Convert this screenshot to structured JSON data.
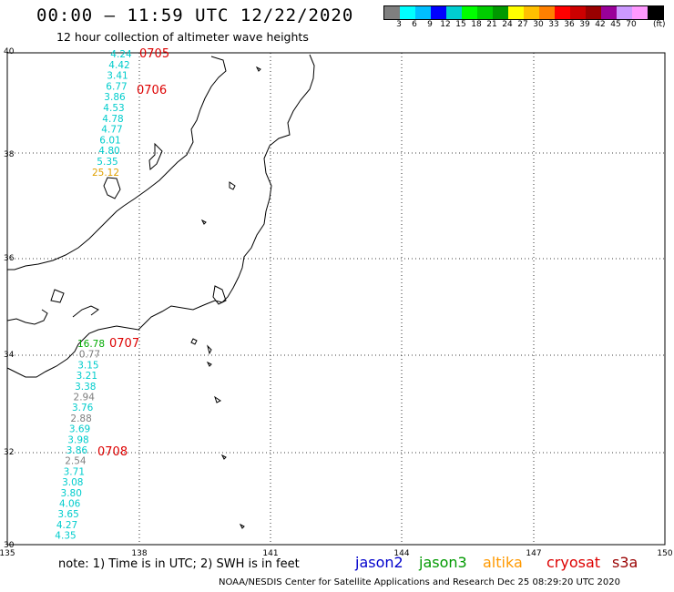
{
  "header": {
    "title": "00:00 – 11:59 UTC 12/22/2020",
    "subtitle": "12 hour collection of altimeter wave heights"
  },
  "colorbar": {
    "colors": [
      "#7f7f7f",
      "#00ffff",
      "#00bfff",
      "#0000ff",
      "#00ced1",
      "#00ff00",
      "#00cc00",
      "#009900",
      "#ffff00",
      "#ffc000",
      "#ff8000",
      "#ff0000",
      "#cc0000",
      "#990000",
      "#990099",
      "#cc99ff",
      "#ff99ff",
      "#000000"
    ],
    "labels": [
      "3",
      "6",
      "9",
      "12",
      "15",
      "18",
      "21",
      "24",
      "27",
      "30",
      "33",
      "36",
      "39",
      "42",
      "45",
      "70"
    ],
    "unit": "(ft)"
  },
  "axes": {
    "lon_labels": [
      "135",
      "138",
      "141",
      "144",
      "147",
      "150"
    ],
    "lat_labels": [
      "40",
      "38",
      "36",
      "34",
      "32",
      "30"
    ]
  },
  "track_north": {
    "values": [
      {
        "v": "4.24",
        "c": "#00cccc"
      },
      {
        "v": "4.42",
        "c": "#00cccc"
      },
      {
        "v": "3.41",
        "c": "#00cccc"
      },
      {
        "v": "6.77",
        "c": "#00cccc"
      },
      {
        "v": "3.86",
        "c": "#00cccc"
      },
      {
        "v": "4.53",
        "c": "#00cccc"
      },
      {
        "v": "4.78",
        "c": "#00cccc"
      },
      {
        "v": "4.77",
        "c": "#00cccc"
      },
      {
        "v": "6.01",
        "c": "#00cccc"
      },
      {
        "v": "4.80",
        "c": "#00cccc"
      },
      {
        "v": "5.35",
        "c": "#00cccc"
      },
      {
        "v": "25.12",
        "c": "#e0a000"
      }
    ],
    "time_labels": [
      "0705",
      "0706"
    ]
  },
  "track_south": {
    "values": [
      {
        "v": "16.78",
        "c": "#00aa00"
      },
      {
        "v": "0.77",
        "c": "#7f7f7f"
      },
      {
        "v": "3.15",
        "c": "#00cccc"
      },
      {
        "v": "3.21",
        "c": "#00cccc"
      },
      {
        "v": "3.38",
        "c": "#00cccc"
      },
      {
        "v": "2.94",
        "c": "#7f7f7f"
      },
      {
        "v": "3.76",
        "c": "#00cccc"
      },
      {
        "v": "2.88",
        "c": "#7f7f7f"
      },
      {
        "v": "3.69",
        "c": "#00cccc"
      },
      {
        "v": "3.98",
        "c": "#00cccc"
      },
      {
        "v": "3.86",
        "c": "#00cccc"
      },
      {
        "v": "2.54",
        "c": "#7f7f7f"
      },
      {
        "v": "3.71",
        "c": "#00cccc"
      },
      {
        "v": "3.08",
        "c": "#00cccc"
      },
      {
        "v": "3.80",
        "c": "#00cccc"
      },
      {
        "v": "4.06",
        "c": "#00cccc"
      },
      {
        "v": "3.65",
        "c": "#00cccc"
      },
      {
        "v": "4.27",
        "c": "#00cccc"
      },
      {
        "v": "4.35",
        "c": "#00cccc"
      }
    ],
    "time_labels": [
      "0707",
      "0708"
    ]
  },
  "footer": {
    "note": "note: 1) Time is in UTC; 2) SWH is in feet",
    "credit": "NOAA/NESDIS Center for Satellite Applications and Research    Dec 25 08:29:20 UTC 2020",
    "satellites": [
      {
        "name": "jason2",
        "color": "#0000cc"
      },
      {
        "name": "jason3",
        "color": "#009900"
      },
      {
        "name": "altika",
        "color": "#ff9900"
      },
      {
        "name": "cryosat",
        "color": "#dd0000"
      },
      {
        "name": "s3a",
        "color": "#990000"
      }
    ]
  }
}
